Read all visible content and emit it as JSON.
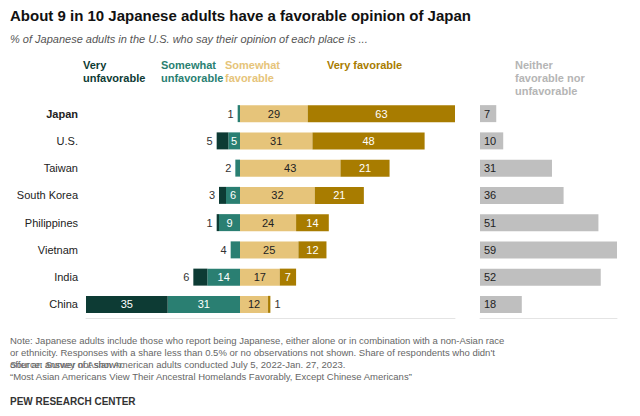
{
  "chart_data": [
    {
      "type": "bar",
      "title": "About 9 in 10 Japanese adults have a favorable opinion of Japan",
      "subtitle": "% of Japanese adults in the U.S. who say their opinion of each place is ...",
      "annotations": [
        "Note: Japanese adults include those who report being Japanese, either alone or in combination with a non-Asian race or ethnicity. Responses with a share less than 0.5% or no observations not shown. Share of respondents who didn't offer an answer not shown.",
        "Source: Survey of Asian American adults conducted July 5, 2022-Jan. 27, 2023.",
        "“Most Asian Americans View Their Ancestral Homelands Favorably, Except Chinese Americans”",
        "PEW RESEARCH CENTER"
      ],
      "orientation": "horizontal",
      "stacked": true,
      "data_labels": true,
      "grid": false,
      "tick_labels": "y",
      "categories": [
        "Japan",
        "U.S.",
        "Taiwan",
        "South Korea",
        "Philippines",
        "Vietnam",
        "India",
        "China"
      ],
      "xlim": [
        0,
        66
      ],
      "series": [
        {
          "name": "Somewhat unfavorable",
          "color": "#2a7f72",
          "values": [
            1,
            5,
            2,
            6,
            9,
            4,
            14,
            31
          ]
        },
        {
          "name": "Very unfavorable",
          "color": "#0d3b34",
          "values": [
            null,
            5,
            null,
            3,
            1,
            null,
            6,
            35
          ]
        }
      ]
    },
    {
      "type": "bar",
      "orientation": "horizontal",
      "stacked": true,
      "data_labels": true,
      "grid": false,
      "tick_labels": false,
      "categories": [
        "Japan",
        "U.S.",
        "Taiwan",
        "South Korea",
        "Philippines",
        "Vietnam",
        "India",
        "China"
      ],
      "xlim": [
        0,
        92
      ],
      "series": [
        {
          "name": "Somewhat favorable",
          "color": "#e6c47a",
          "values": [
            29,
            31,
            43,
            32,
            24,
            25,
            17,
            12
          ]
        },
        {
          "name": "Very favorable",
          "color": "#a87c00",
          "values": [
            63,
            48,
            21,
            21,
            14,
            12,
            7,
            1
          ]
        }
      ]
    },
    {
      "type": "bar",
      "orientation": "horizontal",
      "stacked": true,
      "data_labels": true,
      "grid": false,
      "tick_labels": false,
      "categories": [
        "Japan",
        "U.S.",
        "Taiwan",
        "South Korea",
        "Philippines",
        "Vietnam",
        "India",
        "China"
      ],
      "xlim": [
        0,
        59
      ],
      "series": [
        {
          "name": "Neither favorable nor unfavorable",
          "color": "#bfbfbf",
          "values": [
            7,
            10,
            31,
            36,
            51,
            59,
            52,
            18
          ]
        }
      ]
    }
  ]
}
